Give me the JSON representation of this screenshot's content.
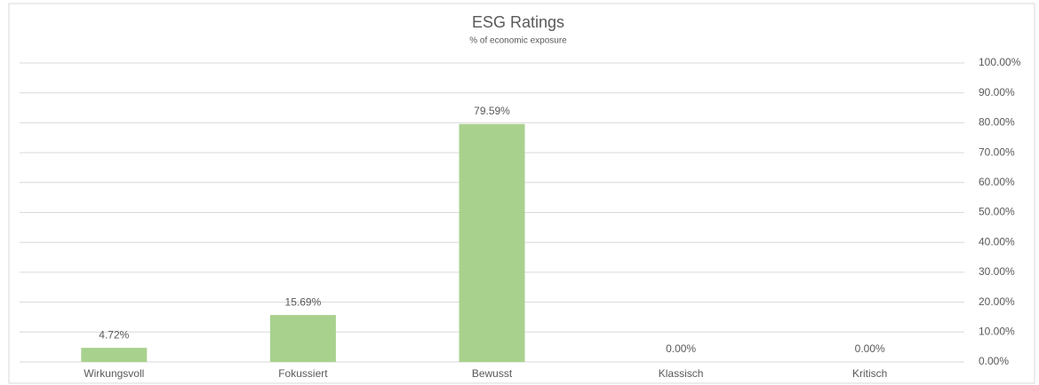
{
  "chart_data": {
    "type": "bar",
    "title": "ESG Ratings",
    "subtitle": "% of economic exposure",
    "categories": [
      "Wirkungsvoll",
      "Fokussiert",
      "Bewusst",
      "Klassisch",
      "Kritisch"
    ],
    "values": [
      4.72,
      15.69,
      79.59,
      0,
      0
    ],
    "value_labels": [
      "4.72%",
      "15.69%",
      "79.59%",
      "0.00%",
      "0.00%"
    ],
    "color": "#a9d18e",
    "ylim": [
      0,
      100
    ],
    "yticks": [
      {
        "value": 0,
        "label": "0.00%"
      },
      {
        "value": 10,
        "label": "10.00%"
      },
      {
        "value": 20,
        "label": "20.00%"
      },
      {
        "value": 30,
        "label": "30.00%"
      },
      {
        "value": 40,
        "label": "40.00%"
      },
      {
        "value": 50,
        "label": "50.00%"
      },
      {
        "value": 60,
        "label": "60.00%"
      },
      {
        "value": 70,
        "label": "70.00%"
      },
      {
        "value": 80,
        "label": "80.00%"
      },
      {
        "value": 90,
        "label": "90.00%"
      },
      {
        "value": 100,
        "label": "100.00%"
      }
    ],
    "grid": true,
    "y_axis_side": "right"
  }
}
